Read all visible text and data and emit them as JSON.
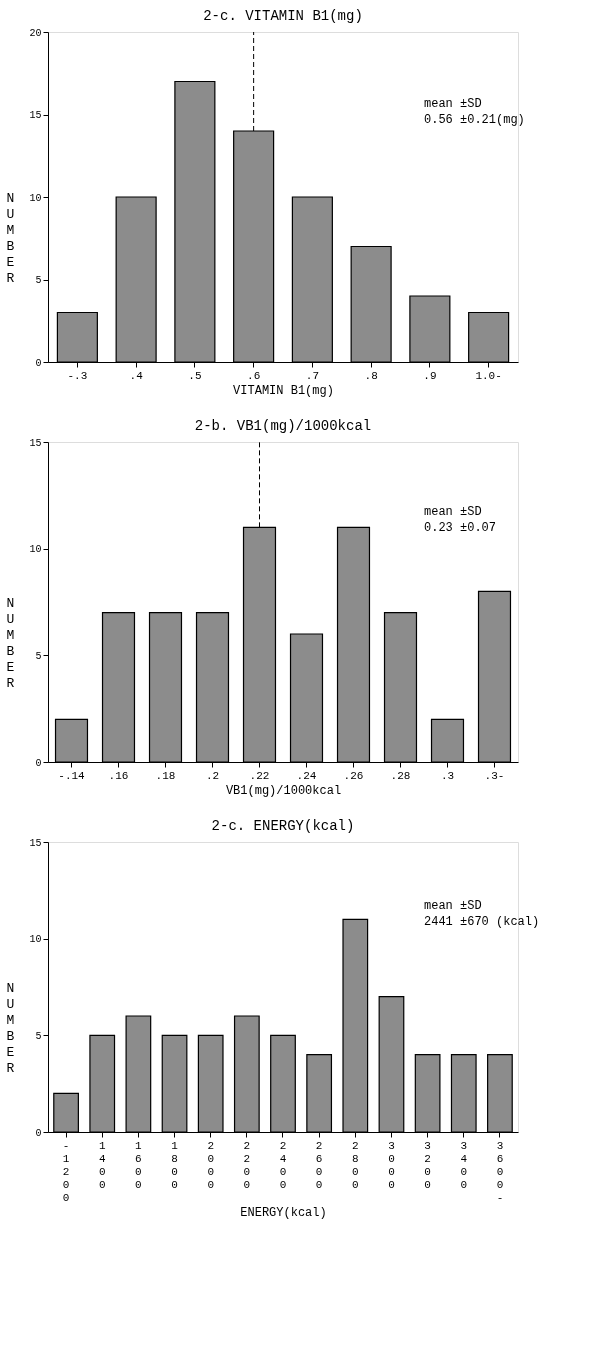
{
  "chart_data": [
    {
      "type": "bar",
      "title": "2-c. VITAMIN B1(mg)",
      "xlabel": "VITAMIN B1(mg)",
      "ylabel": "NUMBER",
      "categories": [
        "-.3",
        ".4",
        ".5",
        ".6",
        ".7",
        ".8",
        ".9",
        "1.0-"
      ],
      "values": [
        3,
        10,
        17,
        14,
        10,
        7,
        4,
        3
      ],
      "color": "#8c8c8c",
      "ylim": [
        0,
        20
      ],
      "yticks": [
        0,
        5,
        10,
        15,
        20
      ],
      "grid": false,
      "ref_lines": [
        {
          "axis": "x",
          "value": ".6",
          "line_style": "dashed"
        }
      ],
      "annotations": [
        "mean ±SD",
        "0.56 ±0.21(mg)"
      ]
    },
    {
      "type": "bar",
      "title": "2-b. VB1(mg)/1000kcal",
      "xlabel": "VB1(mg)/1000kcal",
      "ylabel": "NUMBER",
      "categories": [
        "-.14",
        ".16",
        ".18",
        ".2",
        ".22",
        ".24",
        ".26",
        ".28",
        ".3",
        ".3-"
      ],
      "values": [
        2,
        7,
        7,
        7,
        11,
        6,
        11,
        7,
        2,
        8
      ],
      "color": "#8c8c8c",
      "ylim": [
        0,
        15
      ],
      "yticks": [
        0,
        5,
        10,
        15
      ],
      "grid": false,
      "ref_lines": [
        {
          "axis": "x",
          "value": ".22",
          "line_style": "dashed"
        }
      ],
      "annotations": [
        "mean ±SD",
        "0.23 ±0.07"
      ]
    },
    {
      "type": "bar",
      "title": "2-c. ENERGY(kcal)",
      "xlabel": "ENERGY(kcal)",
      "ylabel": "NUMBER",
      "categories": [
        "-1200",
        "1400",
        "1600",
        "1800",
        "2000",
        "2200",
        "2400",
        "2600",
        "2800",
        "3000",
        "3200",
        "3400",
        "3600-"
      ],
      "values": [
        2,
        5,
        6,
        5,
        5,
        6,
        5,
        4,
        11,
        7,
        4,
        4,
        4
      ],
      "color": "#8c8c8c",
      "ylim": [
        0,
        15
      ],
      "yticks": [
        0,
        5,
        10,
        15
      ],
      "grid": false,
      "annotations": [
        "mean ±SD",
        "2441 ±670 (kcal)"
      ]
    }
  ]
}
